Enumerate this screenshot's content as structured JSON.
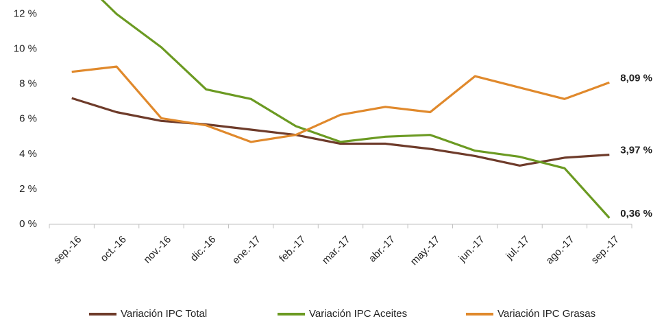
{
  "chart_data": {
    "type": "line",
    "categories": [
      "sep.-16",
      "oct.-16",
      "nov.-16",
      "dic.-16",
      "ene.-17",
      "feb.-17",
      "mar.-17",
      "abr.-17",
      "may.-17",
      "jun.-17",
      "jul.-17",
      "ago.-17",
      "sep.-17"
    ],
    "series": [
      {
        "name": "Variación IPC Total",
        "color": "#6e3b2a",
        "values": [
          7.2,
          6.4,
          5.9,
          5.7,
          5.4,
          5.1,
          4.6,
          4.6,
          4.3,
          3.9,
          3.35,
          3.8,
          3.97
        ],
        "value_labels": [
          null,
          null,
          null,
          null,
          null,
          null,
          null,
          null,
          null,
          null,
          null,
          null,
          "3,97 %"
        ]
      },
      {
        "name": "Variación IPC Aceites",
        "color": "#6b9a22",
        "values": [
          14.5,
          12.0,
          10.1,
          7.7,
          7.15,
          5.6,
          4.7,
          5.0,
          5.1,
          4.2,
          3.85,
          3.2,
          0.36
        ],
        "value_labels": [
          null,
          null,
          null,
          null,
          null,
          null,
          null,
          null,
          null,
          null,
          null,
          null,
          "0,36 %"
        ]
      },
      {
        "name": "Variación IPC Grasas",
        "color": "#e0892c",
        "values": [
          8.7,
          9.0,
          6.05,
          5.65,
          4.7,
          5.1,
          6.25,
          6.7,
          6.4,
          8.45,
          7.8,
          7.15,
          8.09
        ],
        "value_labels": [
          null,
          null,
          null,
          null,
          null,
          null,
          null,
          null,
          null,
          null,
          null,
          null,
          "8,09 %"
        ]
      }
    ],
    "ylim": [
      0,
      12.8
    ],
    "yticks": [
      {
        "value": 0,
        "label": "0 %"
      },
      {
        "value": 2,
        "label": "2 %"
      },
      {
        "value": 4,
        "label": "4 %"
      },
      {
        "value": 6,
        "label": "6 %"
      },
      {
        "value": 8,
        "label": "8 %"
      },
      {
        "value": 10,
        "label": "10 %"
      },
      {
        "value": 12,
        "label": "12 %"
      }
    ],
    "grid": false,
    "legend": "bottom"
  }
}
